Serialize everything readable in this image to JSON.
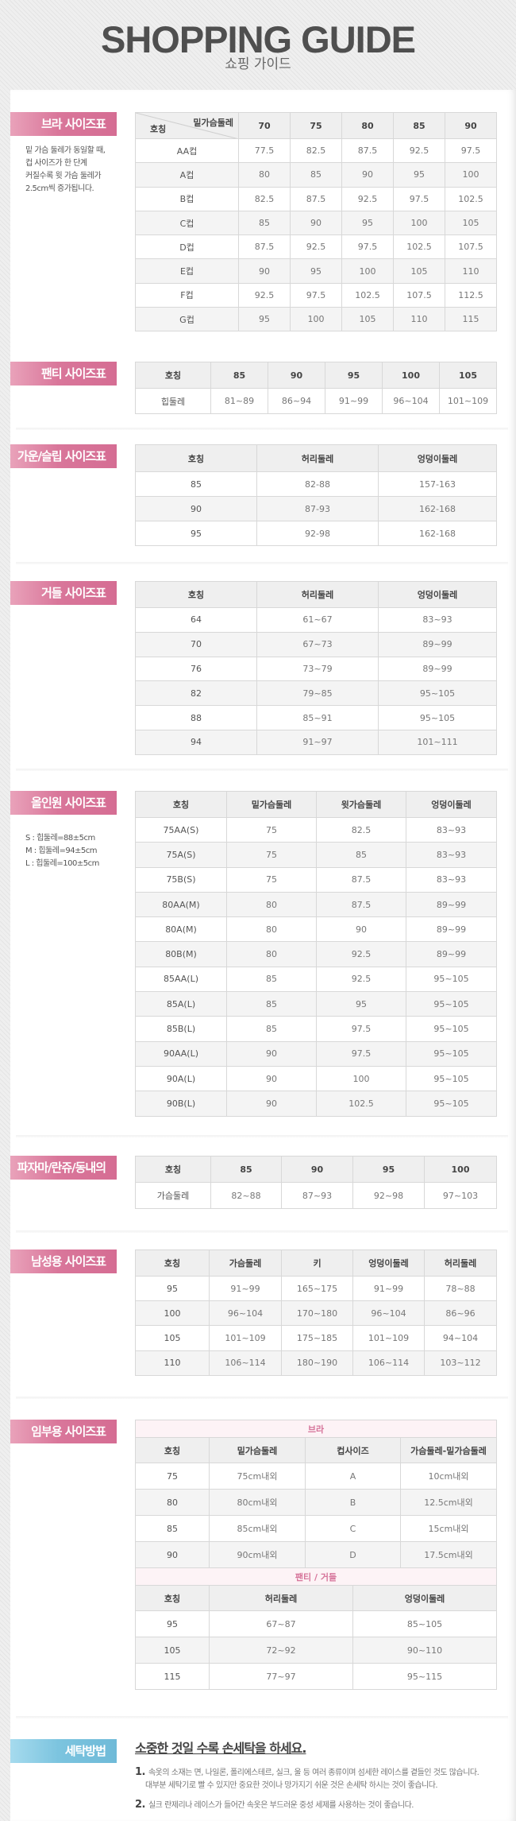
{
  "header": {
    "title": "SHOPPING GUIDE",
    "subtitle": "쇼핑 가이드"
  },
  "colors": {
    "label_pink": "#d9769a",
    "label_blue": "#7cc4df",
    "sub_header_text": "#d6749a"
  },
  "sections": [
    {
      "id": "bra",
      "label": "브라 사이즈표",
      "note": [
        "밑 가슴 둘레가 동일할 때,",
        "컵 사이즈가 한 단계",
        "커질수록 윗 가슴 둘레가",
        "2.5cm씩 증가됩니다."
      ],
      "diag_header": {
        "top": "밑가슴둘레",
        "bottom": "호칭"
      },
      "header": [
        "",
        "70",
        "75",
        "80",
        "85",
        "90"
      ],
      "rows": [
        [
          "AA컵",
          "77.5",
          "82.5",
          "87.5",
          "92.5",
          "97.5"
        ],
        [
          "A컵",
          "80",
          "85",
          "90",
          "95",
          "100"
        ],
        [
          "B컵",
          "82.5",
          "87.5",
          "92.5",
          "97.5",
          "102.5"
        ],
        [
          "C컵",
          "85",
          "90",
          "95",
          "100",
          "105"
        ],
        [
          "D컵",
          "87.5",
          "92.5",
          "97.5",
          "102.5",
          "107.5"
        ],
        [
          "E컵",
          "90",
          "95",
          "100",
          "105",
          "110"
        ],
        [
          "F컵",
          "92.5",
          "97.5",
          "102.5",
          "107.5",
          "112.5"
        ],
        [
          "G컵",
          "95",
          "100",
          "105",
          "110",
          "115"
        ]
      ]
    },
    {
      "id": "panty",
      "label": "팬티 사이즈표",
      "header": [
        "호칭",
        "85",
        "90",
        "95",
        "100",
        "105"
      ],
      "rows": [
        [
          "힙둘레",
          "81~89",
          "86~94",
          "91~99",
          "96~104",
          "101~109"
        ]
      ]
    },
    {
      "id": "gown",
      "label": "가운/슬립 사이즈표",
      "header": [
        "호칭",
        "허리둘레",
        "엉덩이둘레"
      ],
      "rows": [
        [
          "85",
          "82-88",
          "157-163"
        ],
        [
          "90",
          "87-93",
          "162-168"
        ],
        [
          "95",
          "92-98",
          "162-168"
        ]
      ]
    },
    {
      "id": "girdle",
      "label": "거들 사이즈표",
      "header": [
        "호칭",
        "허리둘레",
        "엉덩이둘레"
      ],
      "rows": [
        [
          "64",
          "61~67",
          "83~93"
        ],
        [
          "70",
          "67~73",
          "89~99"
        ],
        [
          "76",
          "73~79",
          "89~99"
        ],
        [
          "82",
          "79~85",
          "95~105"
        ],
        [
          "88",
          "85~91",
          "95~105"
        ],
        [
          "94",
          "91~97",
          "101~111"
        ]
      ]
    },
    {
      "id": "allinone",
      "label": "올인원 사이즈표",
      "note": [
        "S : 힙둘레=88±5cm",
        "M : 힙둘레=94±5cm",
        "L : 힙둘레=100±5cm"
      ],
      "header": [
        "호칭",
        "밑가슴둘레",
        "윗가슴둘레",
        "엉덩이둘레"
      ],
      "rows": [
        [
          "75AA(S)",
          "75",
          "82.5",
          "83~93"
        ],
        [
          "75A(S)",
          "75",
          "85",
          "83~93"
        ],
        [
          "75B(S)",
          "75",
          "87.5",
          "83~93"
        ],
        [
          "80AA(M)",
          "80",
          "87.5",
          "89~99"
        ],
        [
          "80A(M)",
          "80",
          "90",
          "89~99"
        ],
        [
          "80B(M)",
          "80",
          "92.5",
          "89~99"
        ],
        [
          "85AA(L)",
          "85",
          "92.5",
          "95~105"
        ],
        [
          "85A(L)",
          "85",
          "95",
          "95~105"
        ],
        [
          "85B(L)",
          "85",
          "97.5",
          "95~105"
        ],
        [
          "90AA(L)",
          "90",
          "97.5",
          "95~105"
        ],
        [
          "90A(L)",
          "90",
          "100",
          "95~105"
        ],
        [
          "90B(L)",
          "90",
          "102.5",
          "95~105"
        ]
      ]
    },
    {
      "id": "pajama",
      "label": "파자마/란쥬/동내의",
      "header": [
        "호칭",
        "85",
        "90",
        "95",
        "100"
      ],
      "rows": [
        [
          "가슴둘레",
          "82~88",
          "87~93",
          "92~98",
          "97~103"
        ]
      ]
    },
    {
      "id": "men",
      "label": "남성용 사이즈표",
      "header": [
        "호칭",
        "가슴둘레",
        "키",
        "엉덩이둘레",
        "허리둘레"
      ],
      "rows": [
        [
          "95",
          "91~99",
          "165~175",
          "91~99",
          "78~88"
        ],
        [
          "100",
          "96~104",
          "170~180",
          "96~104",
          "86~96"
        ],
        [
          "105",
          "101~109",
          "175~185",
          "101~109",
          "94~104"
        ],
        [
          "110",
          "106~114",
          "180~190",
          "106~114",
          "103~112"
        ]
      ]
    }
  ],
  "maternity": {
    "label": "임부용 사이즈표",
    "bra": {
      "title": "브라",
      "header": [
        "호칭",
        "밑가슴둘레",
        "컵사이즈",
        "가슴둘레-밑가슴둘레"
      ],
      "rows": [
        [
          "75",
          "75cm내외",
          "A",
          "10cm내외"
        ],
        [
          "80",
          "80cm내외",
          "B",
          "12.5cm내외"
        ],
        [
          "85",
          "85cm내외",
          "C",
          "15cm내외"
        ],
        [
          "90",
          "90cm내외",
          "D",
          "17.5cm내외"
        ]
      ]
    },
    "panty": {
      "title": "팬티 / 거들",
      "header": [
        "호칭",
        "허리둘레",
        "엉덩이둘레"
      ],
      "rows": [
        [
          "95",
          "67~87",
          "85~105"
        ],
        [
          "105",
          "72~92",
          "90~110"
        ],
        [
          "115",
          "77~97",
          "95~115"
        ]
      ]
    }
  },
  "washing": {
    "label": "세탁방법",
    "title": "소중한 것일 수록 손세탁을 하세요.",
    "items": [
      {
        "num": "1.",
        "lines": [
          "속옷의 소재는 면, 나일론, 폴리에스테르, 실크, 울 등 여러 종류이며 섬세한 레이스를 곁들인 것도 많습니다.",
          "대부분 세탁기로 빨 수 있지만 중요한 것이나 망가지기 쉬운 것은 손세탁 하시는 것이 좋습니다."
        ]
      },
      {
        "num": "2.",
        "lines": [
          "실크 란제리나 레이스가 들어간 속옷은 부드러운 중성 세제를 사용하는 것이 좋습니다."
        ]
      }
    ]
  }
}
